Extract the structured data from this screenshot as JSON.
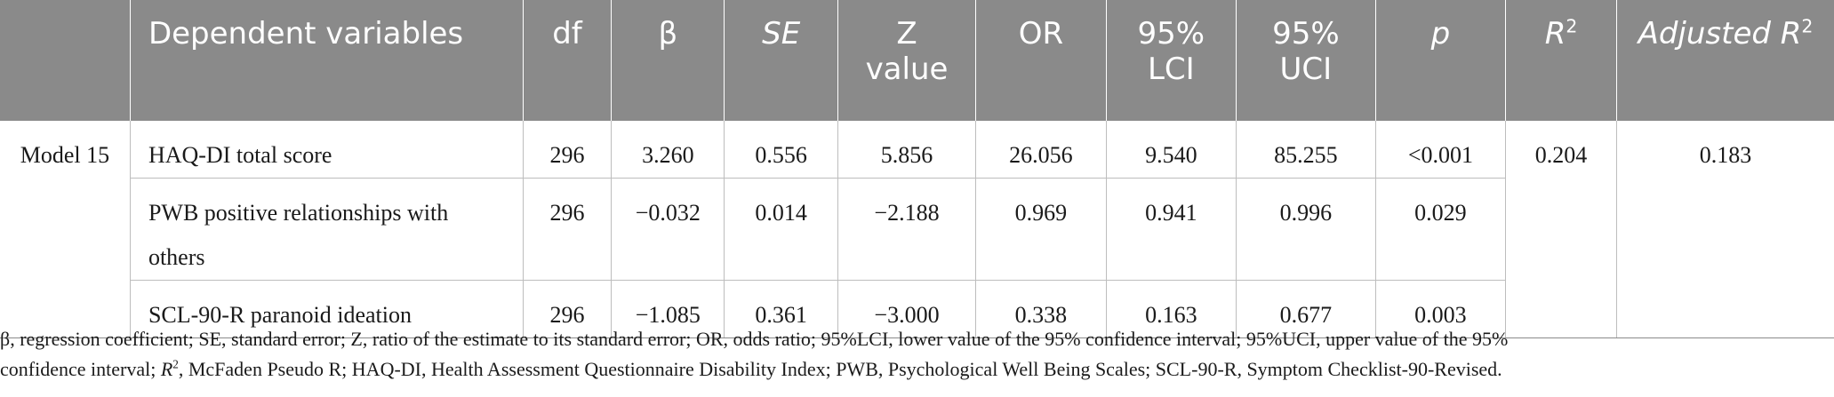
{
  "table": {
    "headers": {
      "empty": "",
      "dependent": "Dependent variables",
      "df": "df",
      "beta": "β",
      "se": "SE",
      "z_line1": "Z",
      "z_line2": "value",
      "or": "OR",
      "lci_line1": "95%",
      "lci_line2": "LCI",
      "uci_line1": "95%",
      "uci_line2": "UCI",
      "p": "p",
      "r2_base": "R",
      "r2_sup": "2",
      "adj_prefix": "Adjusted R",
      "adj_sup": "2"
    },
    "model": "Model 15",
    "r2": "0.204",
    "adjusted_r2": "0.183",
    "rows": [
      {
        "dep": "HAQ-DI total score",
        "df": "296",
        "beta": "3.260",
        "se": "0.556",
        "z": "5.856",
        "or": "26.056",
        "lci": "9.540",
        "uci": "85.255",
        "p": "<0.001"
      },
      {
        "dep_line1": "PWB positive relationships with",
        "dep_line2": "others",
        "df": "296",
        "beta": "−0.032",
        "se": "0.014",
        "z": "−2.188",
        "or": "0.969",
        "lci": "0.941",
        "uci": "0.996",
        "p": "0.029"
      },
      {
        "dep": "SCL-90-R paranoid ideation",
        "df": "296",
        "beta": "−1.085",
        "se": "0.361",
        "z": "−3.000",
        "or": "0.338",
        "lci": "0.163",
        "uci": "0.677",
        "p": "0.003"
      }
    ]
  },
  "footnote": {
    "part1": "β, regression coefficient; SE, standard error; Z, ratio of the estimate to its standard error; OR, odds ratio; 95%LCI, lower value of the 95% confidence interval; 95%UCI, upper value of the 95%",
    "part2a": "confidence interval; ",
    "part2_r": "R",
    "part2_sup": "2",
    "part2b": ", McFaden Pseudo R; HAQ-DI, Health Assessment Questionnaire Disability Index; PWB, Psychological Well Being Scales; SCL-90-R, Symptom Checklist-90-Revised."
  }
}
